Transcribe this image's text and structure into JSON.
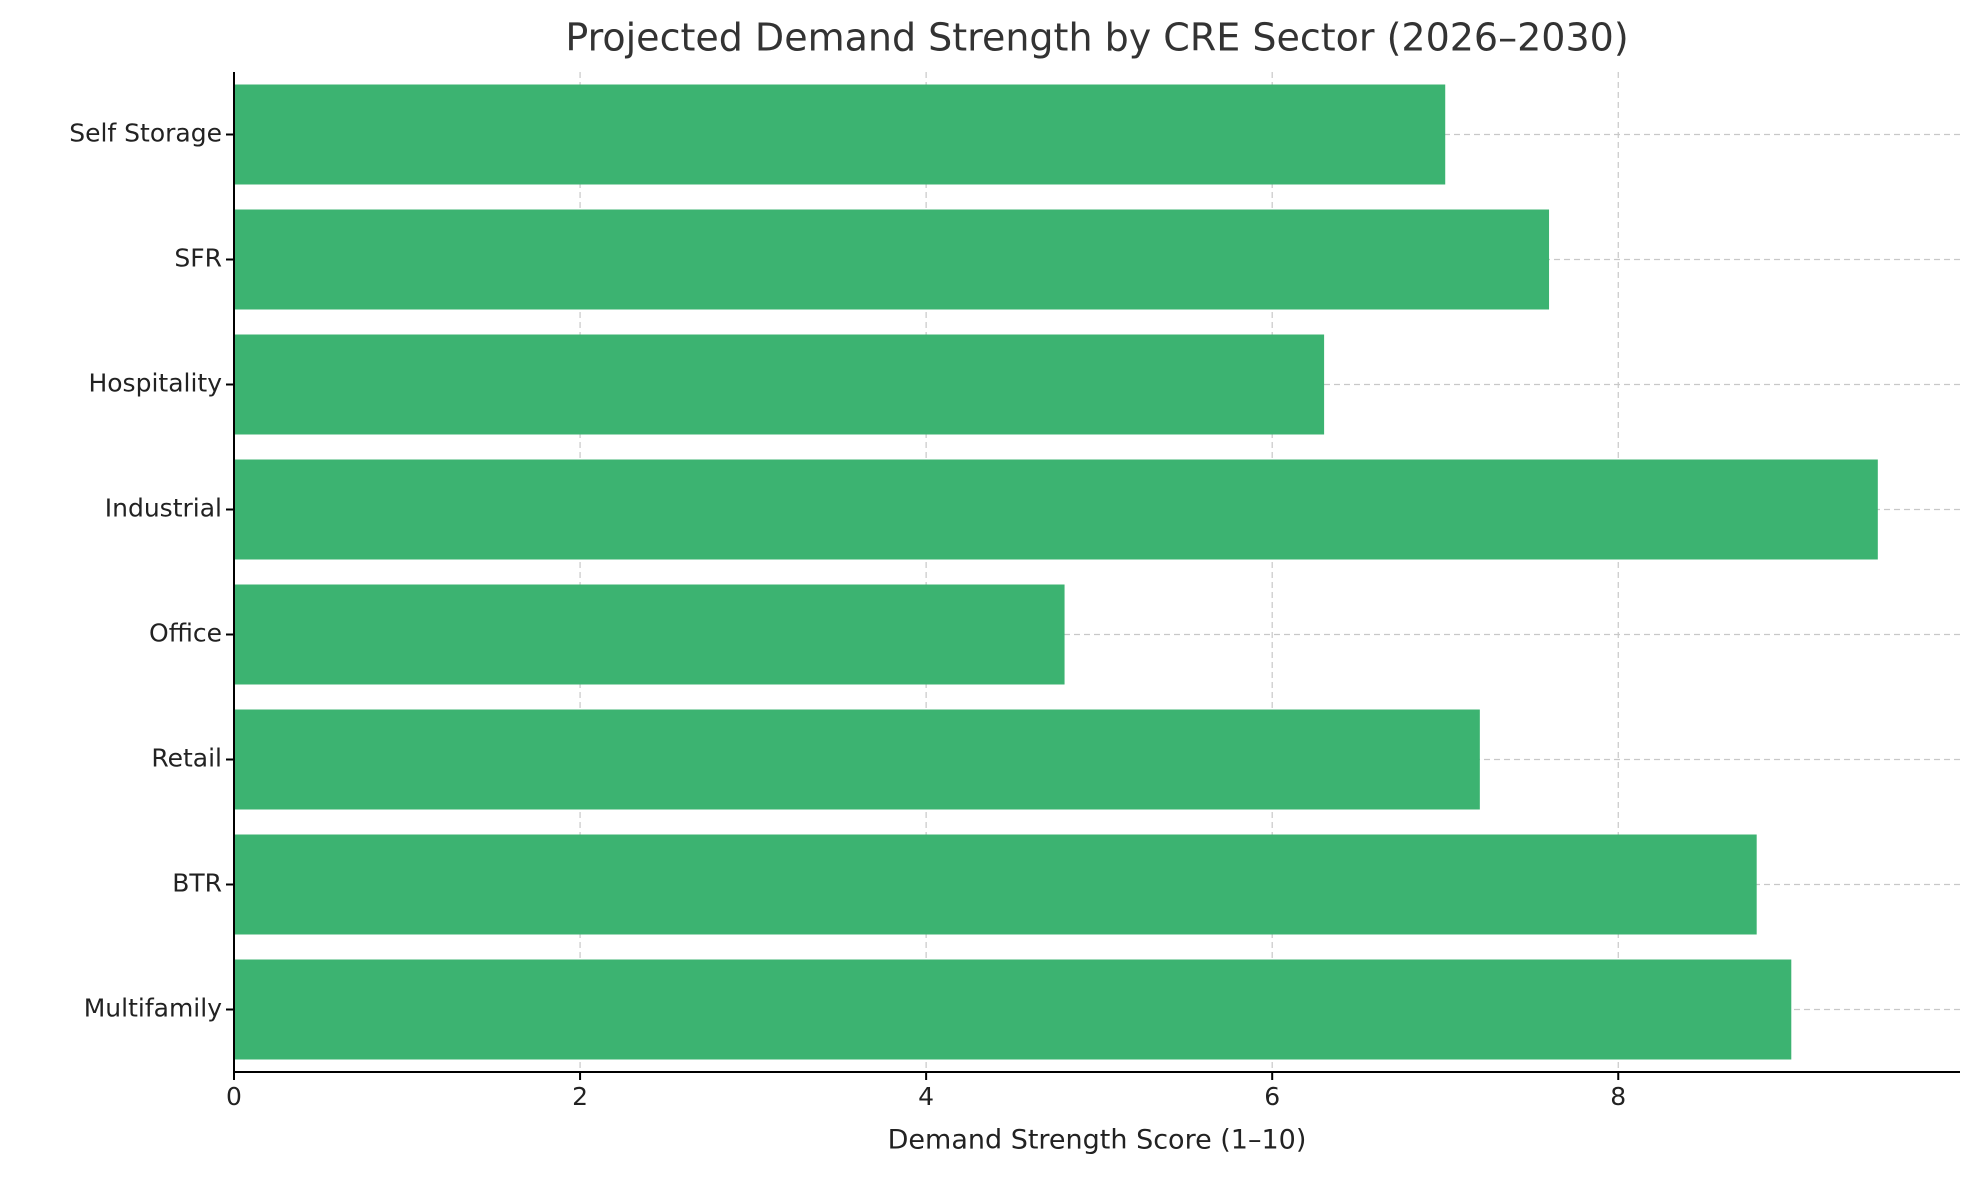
{
  "chart_data": {
    "type": "barh",
    "title": "Projected Demand Strength by CRE Sector (2026–2030)",
    "x_label": "Demand Strength Score (1–10)",
    "categories": [
      "Multifamily",
      "BTR",
      "Retail",
      "Office",
      "Industrial",
      "Hospitality",
      "SFR",
      "Self Storage"
    ],
    "values": [
      9.0,
      8.8,
      7.2,
      4.8,
      9.5,
      6.3,
      7.6,
      7.0
    ],
    "color": "#3cb371",
    "xlim": [
      0,
      9.975
    ],
    "xticks": [
      0,
      2,
      4,
      6,
      8
    ],
    "grid": true
  }
}
